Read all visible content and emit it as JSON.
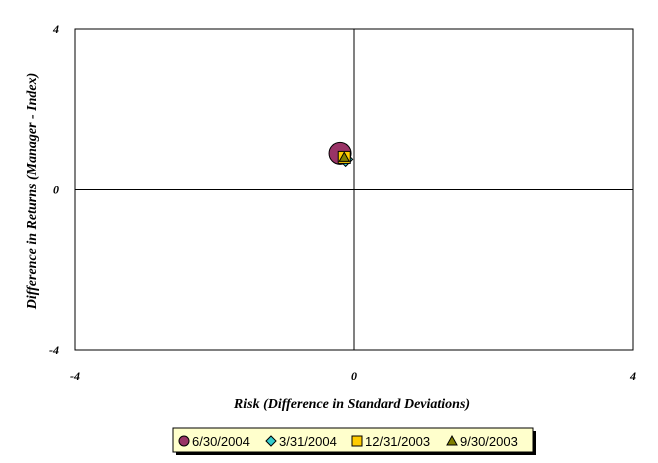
{
  "chart_data": {
    "type": "scatter",
    "xlabel": "Risk (Difference in Standard Deviations)",
    "ylabel": "Difference in Returns (Manager - Index)",
    "xlim": [
      -4,
      4
    ],
    "ylim": [
      -4,
      4
    ],
    "x_ticks": [
      "-4",
      "0",
      "4"
    ],
    "y_ticks": [
      "-4",
      "0",
      "4"
    ],
    "grid": false,
    "crosshair_at_origin": true,
    "legend_position": "bottom-center",
    "series": [
      {
        "name": "6/30/2004",
        "marker": "circle",
        "color": "#993366",
        "points": [
          {
            "x": -0.2,
            "y": 0.9
          }
        ]
      },
      {
        "name": "3/31/2004",
        "marker": "diamond",
        "color": "#33CCCC",
        "points": [
          {
            "x": -0.12,
            "y": 0.75
          }
        ]
      },
      {
        "name": "12/31/2003",
        "marker": "square",
        "color": "#FFCC00",
        "points": [
          {
            "x": -0.14,
            "y": 0.8
          }
        ]
      },
      {
        "name": "9/30/2003",
        "marker": "triangle",
        "color": "#808000",
        "points": [
          {
            "x": -0.14,
            "y": 0.8
          }
        ]
      }
    ]
  }
}
